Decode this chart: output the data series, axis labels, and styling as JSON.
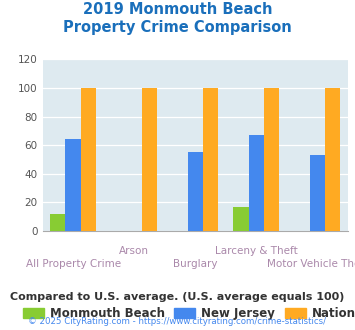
{
  "title_line1": "2019 Monmouth Beach",
  "title_line2": "Property Crime Comparison",
  "title_color": "#1a6fbb",
  "categories": [
    "All Property Crime",
    "Arson",
    "Burglary",
    "Larceny & Theft",
    "Motor Vehicle Theft"
  ],
  "monmouth_beach": [
    12,
    0,
    0,
    17,
    0
  ],
  "new_jersey": [
    64,
    0,
    55,
    67,
    53
  ],
  "national": [
    100,
    100,
    100,
    100,
    100
  ],
  "bar_colors": {
    "monmouth_beach": "#88cc33",
    "new_jersey": "#4488ee",
    "national": "#ffaa22"
  },
  "ylim": [
    0,
    120
  ],
  "yticks": [
    0,
    20,
    40,
    60,
    80,
    100,
    120
  ],
  "xlabel_color": "#aa88aa",
  "legend_labels": [
    "Monmouth Beach",
    "New Jersey",
    "National"
  ],
  "footer_text1": "Compared to U.S. average. (U.S. average equals 100)",
  "footer_text2": "© 2025 CityRating.com - https://www.cityrating.com/crime-statistics/",
  "footer_color1": "#333333",
  "footer_color2": "#4488ee",
  "plot_bg_color": "#deeaf0"
}
